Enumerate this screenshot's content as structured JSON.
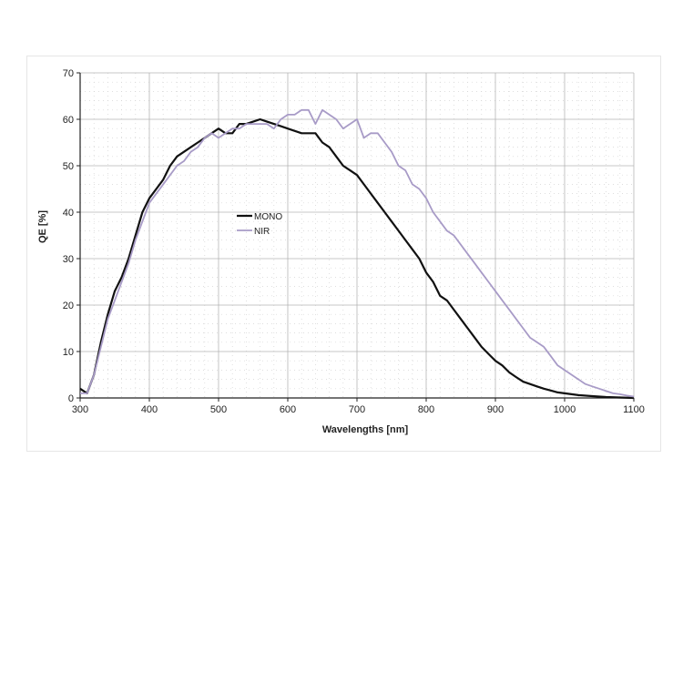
{
  "chart_data": {
    "type": "line",
    "title": "",
    "xlabel": "Wavelengths [nm]",
    "ylabel": "QE [%]",
    "xlim": [
      300,
      1100
    ],
    "ylim": [
      0,
      70
    ],
    "xticks": [
      300,
      400,
      500,
      600,
      700,
      800,
      900,
      1000,
      1100
    ],
    "yticks": [
      0,
      10,
      20,
      30,
      40,
      50,
      60,
      70
    ],
    "grid": true,
    "legend_position": "center-left",
    "series": [
      {
        "name": "MONO",
        "color": "#111111",
        "points": [
          [
            300,
            2
          ],
          [
            310,
            1
          ],
          [
            320,
            5
          ],
          [
            330,
            12
          ],
          [
            340,
            18
          ],
          [
            350,
            23
          ],
          [
            360,
            26
          ],
          [
            370,
            30
          ],
          [
            380,
            35
          ],
          [
            390,
            40
          ],
          [
            400,
            43
          ],
          [
            410,
            45
          ],
          [
            420,
            47
          ],
          [
            430,
            50
          ],
          [
            440,
            52
          ],
          [
            450,
            53
          ],
          [
            460,
            54
          ],
          [
            470,
            55
          ],
          [
            480,
            56
          ],
          [
            490,
            57
          ],
          [
            500,
            58
          ],
          [
            510,
            57
          ],
          [
            520,
            57
          ],
          [
            530,
            59
          ],
          [
            540,
            59
          ],
          [
            550,
            59.5
          ],
          [
            560,
            60
          ],
          [
            570,
            59.5
          ],
          [
            580,
            59
          ],
          [
            590,
            58.5
          ],
          [
            600,
            58
          ],
          [
            620,
            57
          ],
          [
            640,
            57
          ],
          [
            650,
            55
          ],
          [
            660,
            54
          ],
          [
            670,
            52
          ],
          [
            680,
            50
          ],
          [
            690,
            49
          ],
          [
            700,
            48
          ],
          [
            710,
            46
          ],
          [
            720,
            44
          ],
          [
            730,
            42
          ],
          [
            740,
            40
          ],
          [
            750,
            38
          ],
          [
            760,
            36
          ],
          [
            770,
            34
          ],
          [
            780,
            32
          ],
          [
            790,
            30
          ],
          [
            800,
            27
          ],
          [
            810,
            25
          ],
          [
            820,
            22
          ],
          [
            830,
            21
          ],
          [
            840,
            19
          ],
          [
            850,
            17
          ],
          [
            860,
            15
          ],
          [
            870,
            13
          ],
          [
            880,
            11
          ],
          [
            890,
            9.5
          ],
          [
            900,
            8
          ],
          [
            910,
            7
          ],
          [
            920,
            5.5
          ],
          [
            930,
            4.5
          ],
          [
            940,
            3.5
          ],
          [
            950,
            3
          ],
          [
            960,
            2.5
          ],
          [
            970,
            2
          ],
          [
            980,
            1.6
          ],
          [
            990,
            1.2
          ],
          [
            1000,
            1
          ],
          [
            1020,
            0.6
          ],
          [
            1040,
            0.4
          ],
          [
            1060,
            0.2
          ],
          [
            1080,
            0.1
          ],
          [
            1100,
            0
          ]
        ]
      },
      {
        "name": "NIR",
        "color": "#a89bc7",
        "points": [
          [
            300,
            1
          ],
          [
            310,
            1
          ],
          [
            320,
            5
          ],
          [
            330,
            11
          ],
          [
            340,
            17
          ],
          [
            350,
            21
          ],
          [
            360,
            25
          ],
          [
            370,
            29
          ],
          [
            380,
            34
          ],
          [
            390,
            38
          ],
          [
            400,
            42
          ],
          [
            410,
            44
          ],
          [
            420,
            46
          ],
          [
            430,
            48
          ],
          [
            440,
            50
          ],
          [
            450,
            51
          ],
          [
            460,
            53
          ],
          [
            470,
            54
          ],
          [
            480,
            56
          ],
          [
            490,
            57
          ],
          [
            500,
            56
          ],
          [
            510,
            57
          ],
          [
            520,
            58
          ],
          [
            530,
            58
          ],
          [
            540,
            59
          ],
          [
            550,
            59
          ],
          [
            560,
            59
          ],
          [
            570,
            59
          ],
          [
            580,
            58
          ],
          [
            590,
            60
          ],
          [
            600,
            61
          ],
          [
            610,
            61
          ],
          [
            620,
            62
          ],
          [
            630,
            62
          ],
          [
            640,
            59
          ],
          [
            650,
            62
          ],
          [
            660,
            61
          ],
          [
            670,
            60
          ],
          [
            680,
            58
          ],
          [
            690,
            59
          ],
          [
            700,
            60
          ],
          [
            710,
            56
          ],
          [
            720,
            57
          ],
          [
            730,
            57
          ],
          [
            740,
            55
          ],
          [
            750,
            53
          ],
          [
            760,
            50
          ],
          [
            770,
            49
          ],
          [
            780,
            46
          ],
          [
            790,
            45
          ],
          [
            800,
            43
          ],
          [
            810,
            40
          ],
          [
            820,
            38
          ],
          [
            830,
            36
          ],
          [
            840,
            35
          ],
          [
            850,
            33
          ],
          [
            860,
            31
          ],
          [
            870,
            29
          ],
          [
            880,
            27
          ],
          [
            890,
            25
          ],
          [
            900,
            23
          ],
          [
            910,
            21
          ],
          [
            920,
            19
          ],
          [
            930,
            17
          ],
          [
            940,
            15
          ],
          [
            950,
            13
          ],
          [
            960,
            12
          ],
          [
            970,
            11
          ],
          [
            980,
            9
          ],
          [
            990,
            7
          ],
          [
            1000,
            6
          ],
          [
            1010,
            5
          ],
          [
            1020,
            4
          ],
          [
            1030,
            3
          ],
          [
            1040,
            2.5
          ],
          [
            1050,
            2
          ],
          [
            1060,
            1.5
          ],
          [
            1070,
            1
          ],
          [
            1080,
            0.8
          ],
          [
            1090,
            0.5
          ],
          [
            1100,
            0.3
          ]
        ]
      }
    ]
  }
}
